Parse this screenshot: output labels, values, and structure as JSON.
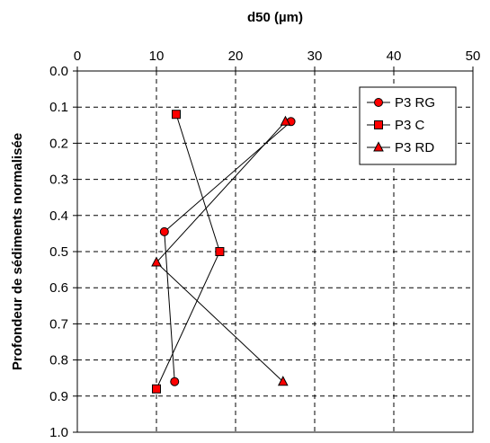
{
  "chart_data": {
    "type": "scatter",
    "title": "",
    "xlabel": "d50 (µm)",
    "ylabel": "Profondeur de sédiments normalisée",
    "x_axis_position": "top",
    "y_axis_inverted": true,
    "xlim": [
      0,
      50
    ],
    "ylim": [
      0,
      1
    ],
    "x_ticks": [
      0,
      10,
      20,
      30,
      40,
      50
    ],
    "x_tick_labels": [
      "0",
      "10",
      "20",
      "30",
      "40",
      "50"
    ],
    "y_ticks": [
      0,
      0.1,
      0.2,
      0.3,
      0.4,
      0.5,
      0.6,
      0.7,
      0.8,
      0.9,
      1.0
    ],
    "y_tick_labels": [
      "0.0",
      "0.1",
      "0.2",
      "0.3",
      "0.4",
      "0.5",
      "0.6",
      "0.7",
      "0.8",
      "0.9",
      "1.0"
    ],
    "grid": true,
    "grid_style": "dashed",
    "legend_position": "top-right",
    "colors": {
      "marker_fill": "#ff0000",
      "marker_stroke": "#000000",
      "line": "#000000",
      "grid": "#000000"
    },
    "series": [
      {
        "name": "P3 RG",
        "marker": "circle",
        "points": [
          {
            "x": 27.0,
            "y": 0.14
          },
          {
            "x": 11.0,
            "y": 0.445
          },
          {
            "x": 12.3,
            "y": 0.86
          }
        ]
      },
      {
        "name": "P3 C",
        "marker": "square",
        "points": [
          {
            "x": 12.5,
            "y": 0.12
          },
          {
            "x": 18.0,
            "y": 0.5
          },
          {
            "x": 10.0,
            "y": 0.88
          }
        ]
      },
      {
        "name": "P3 RD",
        "marker": "triangle",
        "points": [
          {
            "x": 26.3,
            "y": 0.14
          },
          {
            "x": 10.0,
            "y": 0.53
          },
          {
            "x": 26.0,
            "y": 0.86
          }
        ]
      }
    ]
  }
}
